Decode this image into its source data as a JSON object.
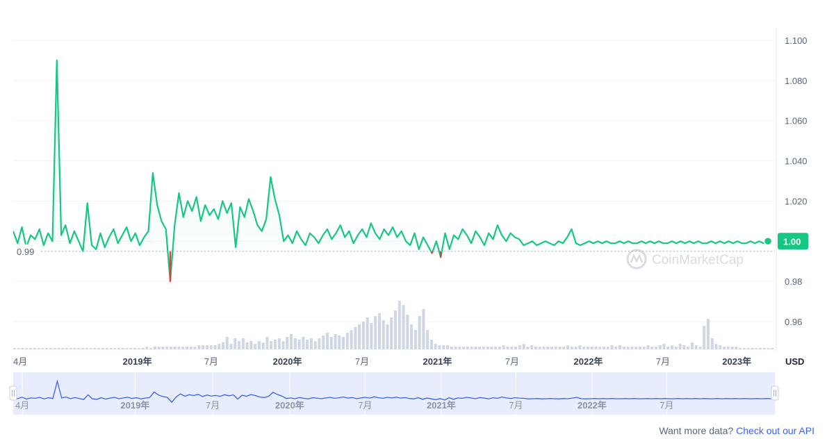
{
  "chart_data": {
    "type": "line",
    "unit_label": "USD",
    "y_axis": {
      "ticks": [
        "1.100",
        "1.080",
        "1.060",
        "1.040",
        "1.020",
        "1.00",
        "0.98",
        "0.96"
      ],
      "ylim": [
        0.945,
        1.105
      ]
    },
    "x_axis": {
      "ticks": [
        {
          "label": "4月",
          "pos": 0.0,
          "year": false
        },
        {
          "label": "2019年",
          "pos": 0.163,
          "year": true
        },
        {
          "label": "7月",
          "pos": 0.26,
          "year": false
        },
        {
          "label": "2020年",
          "pos": 0.36,
          "year": true
        },
        {
          "label": "7月",
          "pos": 0.458,
          "year": false
        },
        {
          "label": "2021年",
          "pos": 0.557,
          "year": true
        },
        {
          "label": "7月",
          "pos": 0.655,
          "year": false
        },
        {
          "label": "2022年",
          "pos": 0.755,
          "year": true
        },
        {
          "label": "7月",
          "pos": 0.853,
          "year": false
        },
        {
          "label": "2023年",
          "pos": 0.95,
          "year": true
        }
      ]
    },
    "reference_line": {
      "value": 0.995,
      "label": "0.99"
    },
    "current_price": {
      "value": 1.0,
      "label": "1.00"
    },
    "series": [
      {
        "values": [
          1.005,
          0.999,
          1.007,
          0.997,
          1.003,
          1.001,
          1.006,
          0.998,
          1.004,
          1.0,
          1.09,
          1.003,
          1.008,
          0.999,
          1.005,
          1.0,
          0.995,
          1.019,
          0.998,
          0.996,
          1.004,
          0.997,
          1.002,
          1.006,
          0.999,
          1.003,
          1.007,
          1.0,
          1.004,
          0.998,
          1.002,
          1.005,
          1.034,
          1.018,
          1.01,
          1.006,
          0.98,
          1.008,
          1.024,
          1.012,
          1.02,
          1.015,
          1.022,
          1.01,
          1.018,
          1.013,
          1.016,
          1.011,
          1.02,
          1.014,
          1.019,
          0.997,
          1.017,
          1.012,
          1.021,
          1.015,
          1.008,
          1.005,
          1.011,
          1.032,
          1.021,
          1.013,
          1.0,
          1.003,
          0.999,
          1.005,
          1.001,
          0.998,
          1.004,
          1.002,
          0.999,
          1.003,
          1.006,
          1.001,
          1.004,
          1.008,
          1.002,
          1.005,
          0.999,
          1.003,
          1.006,
          1.002,
          1.009,
          1.004,
          1.001,
          1.006,
          1.003,
          1.007,
          1.002,
          1.005,
          1.0,
          0.998,
          1.004,
          0.996,
          1.002,
          0.998,
          0.994,
          1.0,
          0.992,
          1.004,
          0.996,
          1.003,
          1.001,
          1.006,
          1.003,
          0.999,
          1.005,
          1.002,
          0.998,
          1.004,
          1.001,
          1.008,
          1.003,
          1.0,
          1.004,
          1.002,
          1.001,
          0.998,
          0.999,
          1.0,
          0.998,
          0.999,
          1.0,
          0.999,
          0.998,
          1.0,
          0.999,
          1.002,
          1.006,
          0.999,
          0.998,
          0.999,
          1.0,
          0.999,
          1.0,
          0.999,
          1.0,
          0.999,
          0.999,
          1.0,
          0.999,
          1.0,
          0.999,
          0.999,
          1.0,
          0.999,
          1.0,
          0.999,
          1.0,
          0.999,
          0.999,
          1.0,
          0.999,
          1.0,
          0.999,
          1.0,
          0.999,
          1.0,
          0.999,
          0.999,
          1.0,
          0.999,
          1.0,
          0.999,
          1.0,
          0.999,
          1.0,
          0.999,
          0.999,
          1.0,
          0.999,
          1.0,
          0.999,
          1.0
        ]
      }
    ],
    "volume": [
      1,
      1,
      1,
      1,
      1,
      1,
      1,
      1,
      1,
      1,
      1,
      1,
      1,
      1,
      1,
      1,
      1,
      1,
      1,
      1,
      1,
      1,
      1,
      1,
      1,
      1,
      1,
      1,
      1,
      1,
      1,
      1,
      1,
      2,
      1,
      2,
      2,
      2,
      2,
      2,
      2,
      2,
      2,
      2,
      2,
      2,
      3,
      3,
      3,
      3,
      3,
      4,
      5,
      9,
      4,
      8,
      6,
      8,
      5,
      6,
      4,
      6,
      5,
      9,
      6,
      7,
      8,
      6,
      9,
      11,
      8,
      7,
      9,
      7,
      8,
      6,
      8,
      10,
      12,
      9,
      11,
      10,
      9,
      12,
      14,
      16,
      18,
      20,
      23,
      19,
      24,
      26,
      21,
      18,
      23,
      28,
      35,
      32,
      25,
      18,
      14,
      24,
      29,
      14,
      7,
      4,
      3,
      3,
      3,
      2,
      2,
      2,
      2,
      2,
      2,
      2,
      2,
      2,
      2,
      2,
      2,
      2,
      3,
      2,
      2,
      2,
      3,
      4,
      2,
      3,
      2,
      2,
      2,
      2,
      2,
      2,
      2,
      2,
      3,
      2,
      2,
      3,
      2,
      2,
      2,
      2,
      2,
      2,
      2,
      3,
      2,
      3,
      2,
      2,
      2,
      2,
      2,
      2,
      3,
      2,
      2,
      3,
      4,
      2,
      3,
      2,
      4,
      3,
      2,
      5,
      3,
      2,
      17,
      22,
      8,
      4,
      3,
      2,
      2,
      2,
      2,
      1,
      1,
      1,
      1,
      1,
      1,
      1,
      1,
      1
    ],
    "navigator": {
      "ticks": [
        {
          "label": "4月",
          "pos": 0.012,
          "year": false
        },
        {
          "label": "2019年",
          "pos": 0.16,
          "year": true
        },
        {
          "label": "7月",
          "pos": 0.262,
          "year": false
        },
        {
          "label": "2020年",
          "pos": 0.363,
          "year": true
        },
        {
          "label": "7月",
          "pos": 0.462,
          "year": false
        },
        {
          "label": "2021年",
          "pos": 0.562,
          "year": true
        },
        {
          "label": "7月",
          "pos": 0.66,
          "year": false
        },
        {
          "label": "2022年",
          "pos": 0.76,
          "year": true
        },
        {
          "label": "7月",
          "pos": 0.858,
          "year": false
        }
      ]
    },
    "watermark": "CoinMarketCap",
    "colors": {
      "line": "#16c784",
      "negative": "#ea3943",
      "area": "#16c784",
      "navigator_line": "#3861fb",
      "navigator_bg": "#e8edfd",
      "volume": "#cfd6e4"
    }
  },
  "footer": {
    "text": "Want more data?",
    "link": "Check out our API"
  }
}
